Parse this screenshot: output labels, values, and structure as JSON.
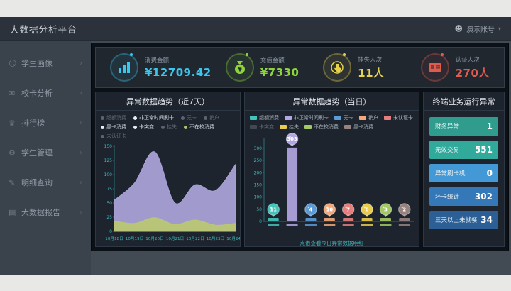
{
  "header": {
    "title": "大数据分析平台",
    "user_label": "演示账号",
    "caret": "▾"
  },
  "sidebar": {
    "chevron": "›",
    "items": [
      {
        "name": "student-portrait",
        "glyph": "☺",
        "label": "学生画像"
      },
      {
        "name": "card-analysis",
        "glyph": "✉",
        "label": "校卡分析"
      },
      {
        "name": "ranking",
        "glyph": "♛",
        "label": "排行榜"
      },
      {
        "name": "student-manage",
        "glyph": "⚙",
        "label": "学生管理"
      },
      {
        "name": "detail-query",
        "glyph": "✎",
        "label": "明细查询"
      },
      {
        "name": "bigdata-report",
        "glyph": "▤",
        "label": "大数据报告"
      }
    ]
  },
  "kpis": [
    {
      "name": "consume-amount",
      "label": "消费金额",
      "value": "¥12709.42",
      "color": "#3bc6ef",
      "icon": "bar-chart-icon"
    },
    {
      "name": "recharge-amount",
      "label": "充值金额",
      "value": "¥7330",
      "color": "#8ed53a",
      "icon": "money-bag-icon"
    },
    {
      "name": "loss-count",
      "label": "挂失人次",
      "value": "11人",
      "color": "#e7d24b",
      "icon": "hand-click-icon"
    },
    {
      "name": "auth-count",
      "label": "认证人次",
      "value": "270人",
      "color": "#e25a4d",
      "icon": "id-card-icon"
    }
  ],
  "trend7": {
    "title": "异常数据趋势（近7天）",
    "legend": [
      {
        "label": "超额消费",
        "on": false
      },
      {
        "label": "非正常时间刷卡",
        "on": true
      },
      {
        "label": "无卡",
        "on": false
      },
      {
        "label": "销户",
        "on": false
      },
      {
        "label": "黑卡消费",
        "on": true
      },
      {
        "label": "卡突变",
        "on": true
      },
      {
        "label": "挂失",
        "on": false
      },
      {
        "label": "不在校消费",
        "on": true,
        "dot": "#a3c964"
      },
      {
        "label": "未认证卡",
        "on": false
      }
    ]
  },
  "today": {
    "title": "异常数据趋势（当日）",
    "footer_link": "点击查看今日异常数据明细",
    "legend": [
      {
        "label": "超额消费",
        "color": "#43c3ba",
        "on": true
      },
      {
        "label": "非正常时间刷卡",
        "color": "#b2a7e2",
        "on": true
      },
      {
        "label": "无卡",
        "color": "#5b9bd8",
        "on": true
      },
      {
        "label": "销户",
        "color": "#f2a878",
        "on": true
      },
      {
        "label": "未认证卡",
        "color": "#e57f7d",
        "on": true
      },
      {
        "label": "卡突变",
        "color": "#70787f",
        "on": false
      },
      {
        "label": "挂失",
        "color": "#e9cb4d",
        "on": true
      },
      {
        "label": "不在校消费",
        "color": "#a3c964",
        "on": true
      },
      {
        "label": "黑卡消费",
        "color": "#96837f",
        "on": true
      }
    ]
  },
  "terminal": {
    "title": "终端业务运行异常",
    "rows": [
      {
        "label": "财务异常",
        "value": "1",
        "color": "#2f9c8d"
      },
      {
        "label": "无效交易",
        "value": "551",
        "color": "#31a99b"
      },
      {
        "label": "异常刷卡机",
        "value": "0",
        "color": "#4398d6"
      },
      {
        "label": "坏卡统计",
        "value": "302",
        "color": "#3478b8"
      },
      {
        "label": "三天以上未就餐",
        "value": "34",
        "color": "#2c5f95"
      }
    ]
  },
  "chart_data": [
    {
      "type": "area",
      "title": "异常数据趋势（近7天）",
      "x": [
        "10月18日",
        "10月19日",
        "10月20日",
        "10月21日",
        "10月22日",
        "10月23日",
        "10月24日"
      ],
      "series": [
        {
          "name": "非正常时间刷卡",
          "color": "#a9a1d6",
          "values": [
            55,
            85,
            140,
            50,
            82,
            72,
            118
          ]
        },
        {
          "name": "不在校消费",
          "color": "#b9c774",
          "values": [
            18,
            14,
            24,
            12,
            20,
            11,
            14
          ]
        }
      ],
      "ylim": [
        0,
        150
      ],
      "yticks": [
        0,
        25,
        50,
        75,
        100,
        125,
        150
      ],
      "axis_color": "#2a6e76",
      "tick_color": "#3fb6bd",
      "grid": false,
      "legend_position": "top"
    },
    {
      "type": "bar",
      "title": "异常数据趋势（当日）",
      "categories": [
        "超额消费",
        "非正常时间刷卡",
        "无卡",
        "销户",
        "未认证卡",
        "挂失",
        "不在校消费",
        "黑卡消费"
      ],
      "values": [
        11,
        303,
        4,
        10,
        7,
        6,
        3,
        2
      ],
      "colors": [
        "#43c3ba",
        "#b2a7e2",
        "#5b9bd8",
        "#f2a878",
        "#e57f7d",
        "#e9cb4d",
        "#a3c964",
        "#96837f"
      ],
      "ylim": [
        0,
        320
      ],
      "yticks": [
        0,
        50,
        100,
        150,
        200,
        250,
        300
      ],
      "axis_color": "#2a6e76",
      "tick_color": "#3fb6bd",
      "grid": false,
      "legend_position": "top"
    }
  ]
}
